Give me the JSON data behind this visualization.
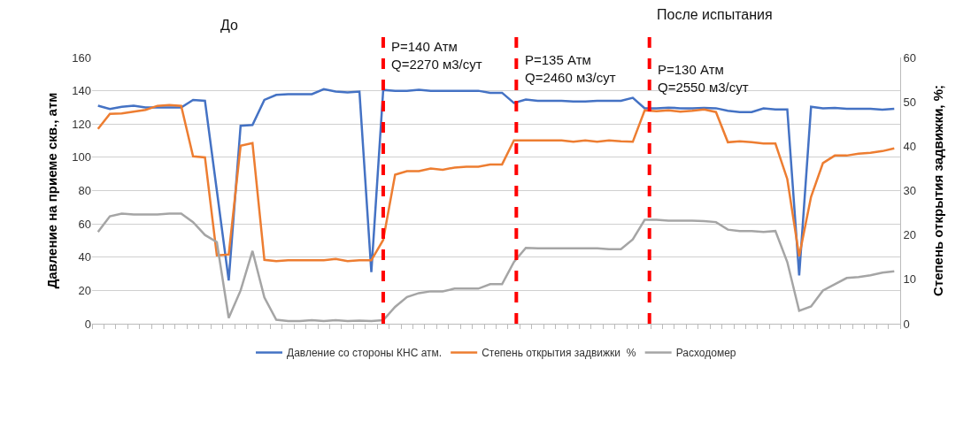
{
  "chart_data": {
    "type": "line",
    "categories": [
      null,
      null,
      null,
      null,
      null,
      null,
      null,
      null,
      null,
      null,
      null,
      null,
      null,
      null,
      null,
      null,
      null,
      null,
      null,
      null,
      null,
      null,
      null,
      null,
      null,
      null,
      null,
      null,
      null,
      null,
      null,
      null,
      null,
      null,
      null,
      null,
      null,
      null,
      null,
      null,
      null,
      null,
      null,
      null,
      null,
      null,
      null,
      null,
      null,
      null,
      null,
      null,
      null,
      null,
      null,
      null,
      null,
      null,
      null,
      null,
      null,
      null,
      null,
      null,
      null,
      null,
      null,
      null
    ],
    "series": [
      {
        "name": "Давление со стороны КНС атм.",
        "color": "#4472c4",
        "values": [
          131,
          129,
          130.4,
          131,
          130,
          130,
          130,
          130,
          134.5,
          134,
          80,
          26,
          119,
          119.5,
          134.5,
          137.5,
          138,
          138,
          138,
          141,
          139.5,
          139,
          139.5,
          31,
          140.5,
          140,
          140,
          140.6,
          140,
          140,
          140,
          140,
          140,
          138.8,
          138.8,
          132.7,
          134.7,
          134,
          134,
          134,
          133.6,
          133.5,
          134,
          134,
          134,
          135.8,
          129.5,
          129.5,
          129.9,
          129.5,
          129.5,
          129.7,
          129.5,
          128,
          127.2,
          127.2,
          129.4,
          128.8,
          128.8,
          29,
          130.4,
          129.4,
          129.7,
          129.2,
          129.2,
          129.2,
          128.6,
          129.2
        ]
      },
      {
        "name": "Степень открытия задвижки  %",
        "color": "#ed7d31",
        "axis": "y2",
        "values": [
          43.9,
          47.3,
          47.4,
          47.8,
          48.2,
          49.1,
          49.3,
          49.1,
          37.7,
          37.5,
          15.4,
          15.6,
          40.1,
          40.7,
          14.4,
          14.1,
          14.3,
          14.3,
          14.3,
          14.3,
          14.6,
          14.1,
          14.3,
          14.3,
          18.9,
          33.6,
          34.4,
          34.4,
          35,
          34.7,
          35.2,
          35.4,
          35.4,
          35.9,
          35.9,
          41.3,
          41.3,
          41.3,
          41.3,
          41.3,
          41,
          41.3,
          41,
          41.3,
          41.1,
          41,
          48.1,
          47.9,
          48.1,
          47.8,
          48,
          48.3,
          47.7,
          40.9,
          41.1,
          40.9,
          40.6,
          40.6,
          32.6,
          15.2,
          28.6,
          36.2,
          37.9,
          37.9,
          38.3,
          38.5,
          38.9,
          39.5
        ]
      },
      {
        "name": "Расходомер",
        "color": "#a5a5a5",
        "axis": "y2",
        "values": [
          20.7,
          24.2,
          24.8,
          24.6,
          24.6,
          24.6,
          24.8,
          24.8,
          22.9,
          20,
          18.4,
          1.3,
          7.5,
          16.4,
          5.9,
          0.9,
          0.6,
          0.6,
          0.8,
          0.6,
          0.8,
          0.6,
          0.7,
          0.6,
          0.8,
          3.8,
          6,
          6.9,
          7.3,
          7.3,
          7.9,
          7.9,
          7.9,
          8.9,
          8.9,
          13.9,
          17.1,
          17,
          17,
          17,
          17,
          17,
          17,
          16.8,
          16.8,
          19,
          23.4,
          23.4,
          23.2,
          23.2,
          23.2,
          23.1,
          22.9,
          21.2,
          20.9,
          20.9,
          20.7,
          20.9,
          13.9,
          2.9,
          3.9,
          7.5,
          8.9,
          10.3,
          10.5,
          10.9,
          11.5,
          11.8
        ]
      }
    ],
    "ylabel": "Давление на приеме скв., атм",
    "y2label": "Степень открытия задвижки, %;",
    "ylim": [
      0,
      160
    ],
    "yticks": [
      0,
      20,
      40,
      60,
      80,
      100,
      120,
      140,
      160
    ],
    "y2lim": [
      0,
      60
    ],
    "y2ticks": [
      0,
      10,
      20,
      30,
      40,
      50,
      60
    ],
    "annotations": [
      "До",
      "После испытания",
      "P=140 Атм\nQ=2270 м3/сут",
      "P=135 Атм\nQ=2460 м3/сут",
      "P=130 Атм\nQ=2550 м3/сут"
    ],
    "grid": "y",
    "legend": "bottom",
    "marker": "none",
    "line_style": "solid"
  }
}
